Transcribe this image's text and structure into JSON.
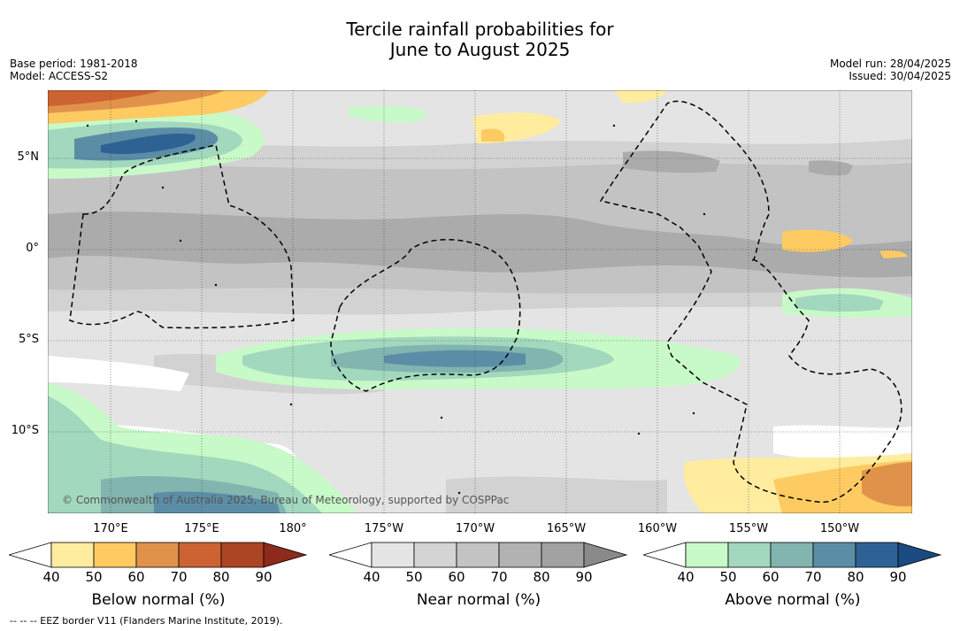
{
  "title_line1": "Tercile rainfall probabilities for",
  "title_line2": "June to August 2025",
  "meta_left": [
    "Base period: 1981-2018",
    "Model: ACCESS-S2"
  ],
  "meta_right": [
    "Model run: 28/04/2025",
    "Issued: 30/04/2025"
  ],
  "lat_labels": [
    "5°N",
    "0°",
    "5°S",
    "10°S"
  ],
  "lon_labels": [
    "170°E",
    "175°E",
    "180°",
    "175°W",
    "170°W",
    "165°W",
    "160°W",
    "155°W",
    "150°W"
  ],
  "credit": "© Commonwealth of Australia 2025, Bureau of Meteorology, supported by COSPPac",
  "footer": "--  --  -- EEZ border V11 (Flanders Marine Institute, 2019).",
  "colorbars": [
    {
      "label": "Below normal (%)",
      "ticks": [
        "40",
        "50",
        "60",
        "70",
        "80",
        "90"
      ],
      "colors": [
        "#ffffff",
        "#ffec9f",
        "#fdcb61",
        "#e0924a",
        "#cd6332",
        "#ac4524",
        "#8c2a1c"
      ]
    },
    {
      "label": "Near normal (%)",
      "ticks": [
        "40",
        "50",
        "60",
        "70",
        "80",
        "90"
      ],
      "colors": [
        "#ffffff",
        "#e5e5e5",
        "#d4d4d4",
        "#c3c3c3",
        "#b2b2b2",
        "#a2a2a2",
        "#8a8a8a"
      ]
    },
    {
      "label": "Above normal (%)",
      "ticks": [
        "40",
        "50",
        "60",
        "70",
        "80",
        "90"
      ],
      "colors": [
        "#ffffff",
        "#c8f9c8",
        "#a2d8bd",
        "#82b4b0",
        "#5b8ea6",
        "#2f6294",
        "#1a4a80"
      ]
    }
  ]
}
